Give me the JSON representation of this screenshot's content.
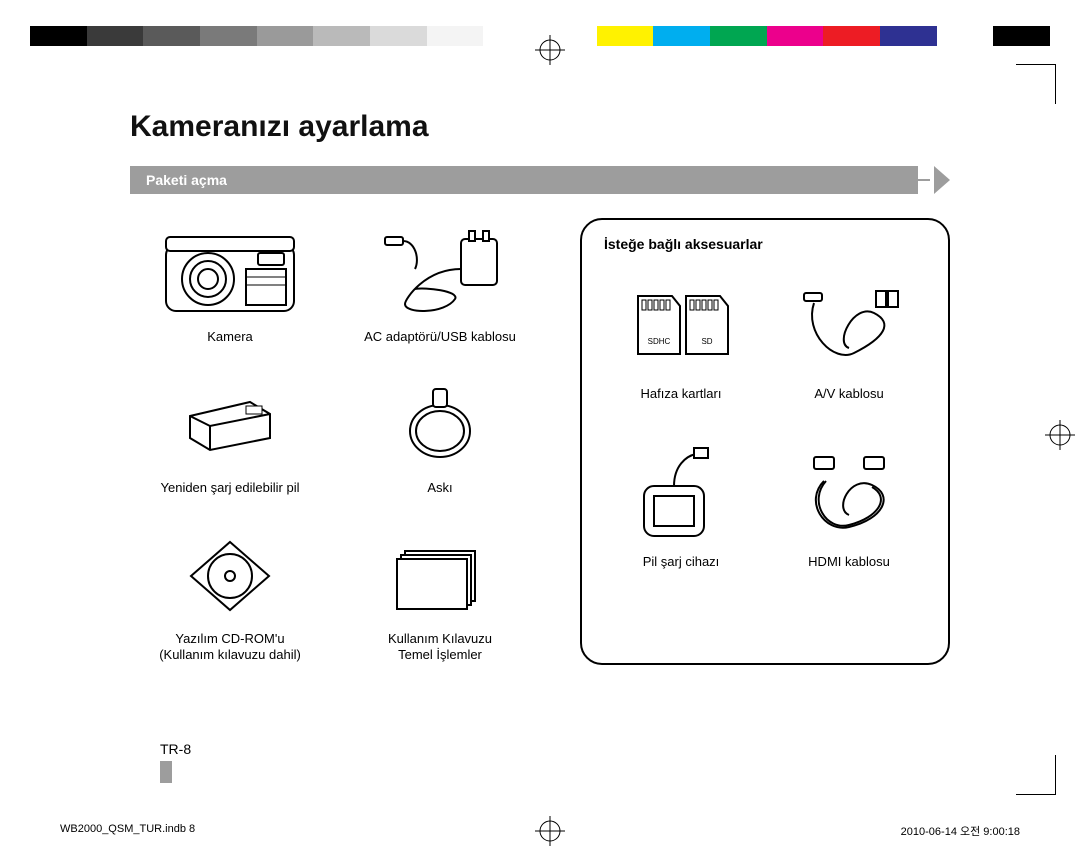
{
  "colorBar": [
    "#000000",
    "#3a3a3a",
    "#5a5a5a",
    "#7a7a7a",
    "#9a9a9a",
    "#bababa",
    "#dadada",
    "#f4f4f4",
    "#ffffff",
    "#ffffff",
    "#fff200",
    "#00aeef",
    "#00a651",
    "#ec008c",
    "#ed1c24",
    "#2e3192",
    "#ffffff",
    "#000000"
  ],
  "title": "Kameranızı ayarlama",
  "sectionLabel": "Paketi açma",
  "included": [
    {
      "name": "camera",
      "label": "Kamera"
    },
    {
      "name": "adapter",
      "label": "AC adaptörü/USB kablosu"
    },
    {
      "name": "battery",
      "label": "Yeniden şarj edilebilir pil"
    },
    {
      "name": "strap",
      "label": "Askı"
    },
    {
      "name": "cdrom",
      "label": "Yazılım CD-ROM'u\n(Kullanım kılavuzu dahil)"
    },
    {
      "name": "manual",
      "label": "Kullanım Kılavuzu\nTemel İşlemler"
    }
  ],
  "optionalTitle": "İsteğe bağlı aksesuarlar",
  "optional": [
    {
      "name": "sdcards",
      "label": "Hafıza kartları"
    },
    {
      "name": "avcable",
      "label": "A/V kablosu"
    },
    {
      "name": "charger",
      "label": "Pil şarj cihazı"
    },
    {
      "name": "hdmi",
      "label": "HDMI kablosu"
    }
  ],
  "sdLabels": {
    "sdhc": "SDHC",
    "sd": "SD"
  },
  "pageNumber": "TR-8",
  "footerLeft": "WB2000_QSM_TUR.indb   8",
  "footerRight": "2010-06-14   오전 9:00:18"
}
